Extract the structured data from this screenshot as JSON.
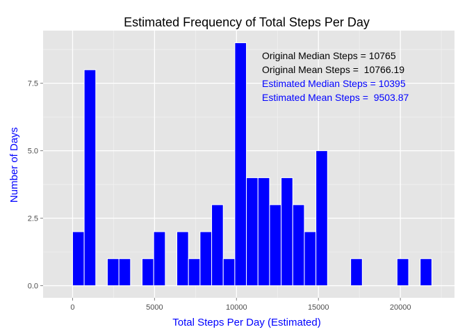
{
  "chart_data": {
    "type": "bar",
    "title": "Estimated Frequency of Total Steps Per Day",
    "xlabel": "Total Steps Per Day (Estimated)",
    "ylabel": "Number of Days",
    "xlim": [
      -1800,
      23300
    ],
    "ylim": [
      -0.45,
      9.45
    ],
    "xticks": [
      0,
      5000,
      10000,
      15000,
      20000
    ],
    "xtick_labels": [
      "0",
      "5000",
      "10000",
      "15000",
      "20000"
    ],
    "yticks": [
      0,
      2.5,
      5,
      7.5
    ],
    "ytick_labels": [
      "0.0",
      "2.5",
      "5.0",
      "7.5"
    ],
    "grid": true,
    "bin_width": 707,
    "bins": [
      {
        "x": 353,
        "count": 2
      },
      {
        "x": 1060,
        "count": 8
      },
      {
        "x": 2474,
        "count": 1
      },
      {
        "x": 3181,
        "count": 1
      },
      {
        "x": 4595,
        "count": 1
      },
      {
        "x": 5302,
        "count": 2
      },
      {
        "x": 6716,
        "count": 2
      },
      {
        "x": 7423,
        "count": 1
      },
      {
        "x": 8130,
        "count": 2
      },
      {
        "x": 8837,
        "count": 3
      },
      {
        "x": 9544,
        "count": 1
      },
      {
        "x": 10251,
        "count": 9
      },
      {
        "x": 10958,
        "count": 4
      },
      {
        "x": 11665,
        "count": 4
      },
      {
        "x": 12372,
        "count": 3
      },
      {
        "x": 13079,
        "count": 4
      },
      {
        "x": 13786,
        "count": 3
      },
      {
        "x": 14493,
        "count": 2
      },
      {
        "x": 15200,
        "count": 5
      },
      {
        "x": 17321,
        "count": 1
      },
      {
        "x": 20149,
        "count": 1
      },
      {
        "x": 21563,
        "count": 1
      }
    ],
    "annotations": [
      {
        "text": "Original Median Steps = 10765",
        "color": "#000000"
      },
      {
        "text": "Original Mean Steps =  10766.19",
        "color": "#000000"
      },
      {
        "text": "Estimated Median Steps = 10395",
        "color": "#0000ff"
      },
      {
        "text": "Estimated Mean Steps =  9503.87",
        "color": "#0000ff"
      }
    ],
    "colors": {
      "bar_fill": "#0000ff",
      "bar_outline": "#ffffff",
      "panel": "#e5e5e5",
      "grid_major": "#ffffff",
      "grid_minor": "#f2f2f2",
      "axis_title": "#0000ff",
      "tick_label": "#4d4d4d"
    }
  }
}
